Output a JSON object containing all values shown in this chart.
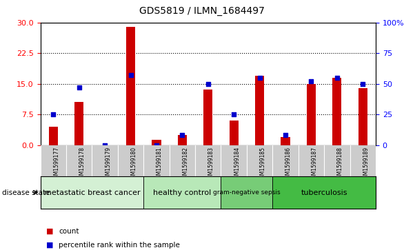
{
  "title": "GDS5819 / ILMN_1684497",
  "samples": [
    "GSM1599177",
    "GSM1599178",
    "GSM1599179",
    "GSM1599180",
    "GSM1599181",
    "GSM1599182",
    "GSM1599183",
    "GSM1599184",
    "GSM1599185",
    "GSM1599186",
    "GSM1599187",
    "GSM1599188",
    "GSM1599189"
  ],
  "counts": [
    4.5,
    10.5,
    0,
    29.0,
    1.2,
    2.5,
    13.5,
    6.0,
    17.0,
    2.0,
    15.0,
    16.5,
    14.0
  ],
  "percentiles": [
    25,
    47,
    0,
    57,
    0,
    8,
    50,
    25,
    55,
    8,
    52,
    55,
    50
  ],
  "groups": [
    {
      "label": "metastatic breast cancer",
      "start": 0,
      "end": 4
    },
    {
      "label": "healthy control",
      "start": 4,
      "end": 7
    },
    {
      "label": "gram-negative sepsis",
      "start": 7,
      "end": 9
    },
    {
      "label": "tuberculosis",
      "start": 9,
      "end": 13
    }
  ],
  "group_palette": [
    "#d4f0d4",
    "#b8e8b8",
    "#77cc77",
    "#44bb44"
  ],
  "ylim_left": [
    0,
    30
  ],
  "ylim_right": [
    0,
    100
  ],
  "yticks_left": [
    0,
    7.5,
    15,
    22.5,
    30
  ],
  "yticks_right": [
    0,
    25,
    50,
    75,
    100
  ],
  "bar_color": "#cc0000",
  "dot_color": "#0000cc",
  "tick_area_bg": "#cccccc",
  "legend_items": [
    {
      "color": "#cc0000",
      "label": "count"
    },
    {
      "color": "#0000cc",
      "label": "percentile rank within the sample"
    }
  ]
}
